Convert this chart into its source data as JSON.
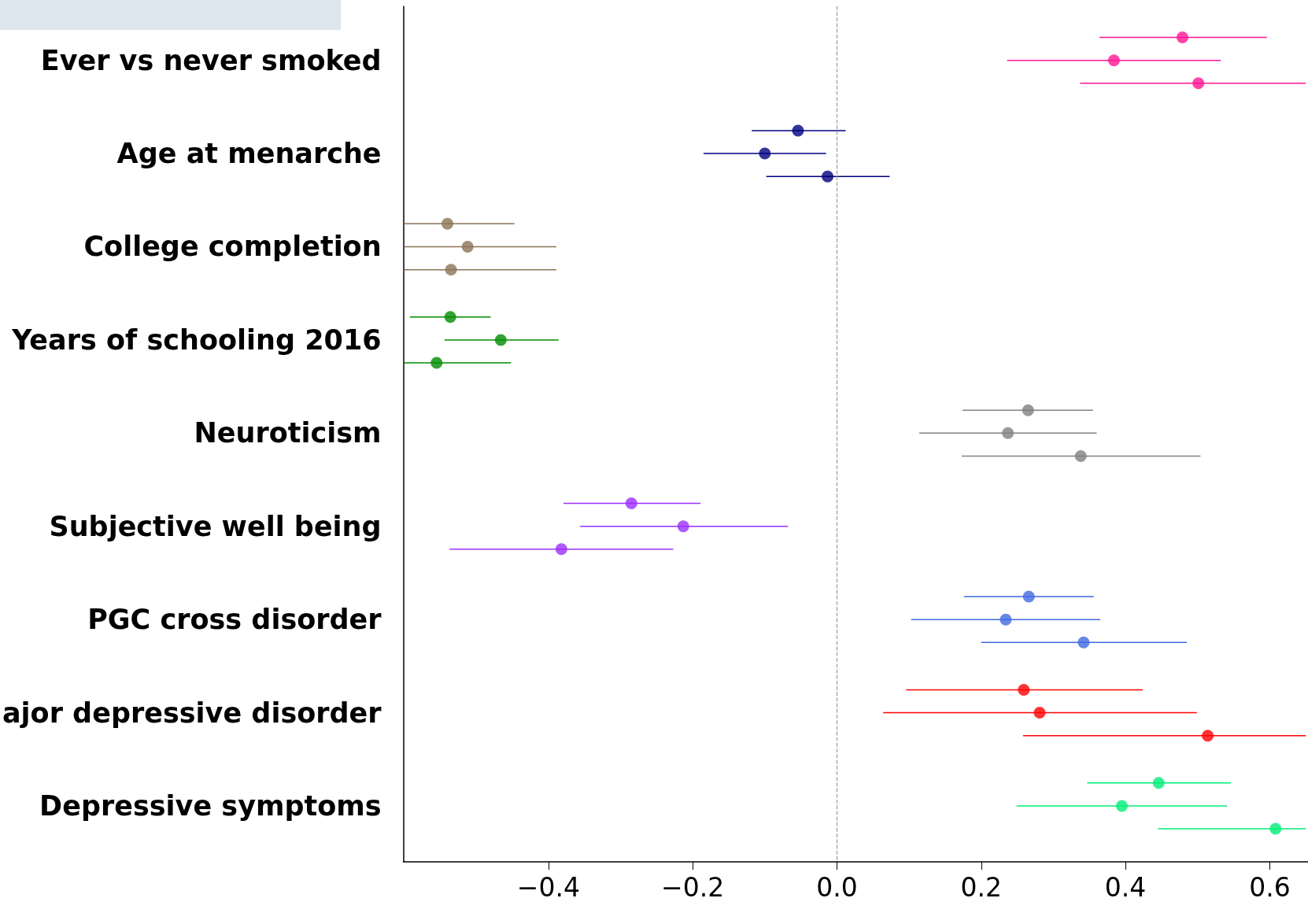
{
  "chart_data": {
    "type": "scatter",
    "orientation": "horizontal",
    "marker": "circle",
    "categories": [
      "Ever vs never smoked",
      "Age at menarche",
      "College completion",
      "Years of schooling 2016",
      "Neuroticism",
      "Subjective well being",
      "PGC cross disorder",
      "ajor depressive disorder",
      "Depressive symptoms"
    ],
    "series": [
      {
        "values": [
          0.479,
          -0.054,
          -0.54,
          -0.536,
          0.265,
          -0.285,
          0.266,
          0.259,
          0.446
        ],
        "errors": [
          [
            0.364,
            0.596
          ],
          [
            -0.118,
            0.012
          ],
          [
            -0.6,
            -0.447
          ],
          [
            -0.592,
            -0.48
          ],
          [
            0.174,
            0.355
          ],
          [
            -0.379,
            -0.189
          ],
          [
            0.176,
            0.356
          ],
          [
            0.096,
            0.424
          ],
          [
            0.347,
            0.546
          ]
        ],
        "colors": [
          "#ff1493",
          "#000080",
          "#8b7355",
          "#008b00",
          "#808080",
          "#9b30ff",
          "#4169e1",
          "#ff0000",
          "#00ee76"
        ]
      },
      {
        "values": [
          0.384,
          -0.1,
          -0.512,
          -0.466,
          0.237,
          -0.213,
          0.234,
          0.281,
          0.395
        ],
        "errors": [
          [
            0.236,
            0.532
          ],
          [
            -0.185,
            -0.015
          ],
          [
            -0.6,
            -0.389
          ],
          [
            -0.544,
            -0.386
          ],
          [
            0.114,
            0.36
          ],
          [
            -0.356,
            -0.068
          ],
          [
            0.103,
            0.365
          ],
          [
            0.064,
            0.499
          ],
          [
            0.249,
            0.541
          ]
        ],
        "colors": [
          "#ff1493",
          "#000080",
          "#8b7355",
          "#008b00",
          "#808080",
          "#9b30ff",
          "#4169e1",
          "#ff0000",
          "#00ee76"
        ]
      },
      {
        "values": [
          0.501,
          -0.013,
          -0.535,
          -0.555,
          0.338,
          -0.382,
          0.342,
          0.514,
          0.608
        ],
        "errors": [
          [
            0.337,
            0.65
          ],
          [
            -0.098,
            0.073
          ],
          [
            -0.6,
            -0.389
          ],
          [
            -0.6,
            -0.452
          ],
          [
            0.173,
            0.504
          ],
          [
            -0.537,
            -0.227
          ],
          [
            0.2,
            0.485
          ],
          [
            0.258,
            0.65
          ],
          [
            0.445,
            0.65
          ]
        ],
        "colors": [
          "#ff1493",
          "#000080",
          "#8b7355",
          "#008b00",
          "#808080",
          "#9b30ff",
          "#4169e1",
          "#ff0000",
          "#00ee76"
        ]
      }
    ],
    "xlim": [
      -0.601,
      0.653
    ],
    "xticks": [
      {
        "value": -0.4,
        "label": "−0.4"
      },
      {
        "value": -0.2,
        "label": "−0.2"
      },
      {
        "value": 0,
        "label": "0.0"
      },
      {
        "value": 0.2,
        "label": "0.2"
      },
      {
        "value": 0.4,
        "label": "0.4"
      },
      {
        "value": 0.6,
        "label": "0.6"
      }
    ],
    "ref_lines": [
      {
        "axis": "x",
        "value": 0,
        "color": "#999999",
        "line_style": "dashed"
      }
    ]
  }
}
